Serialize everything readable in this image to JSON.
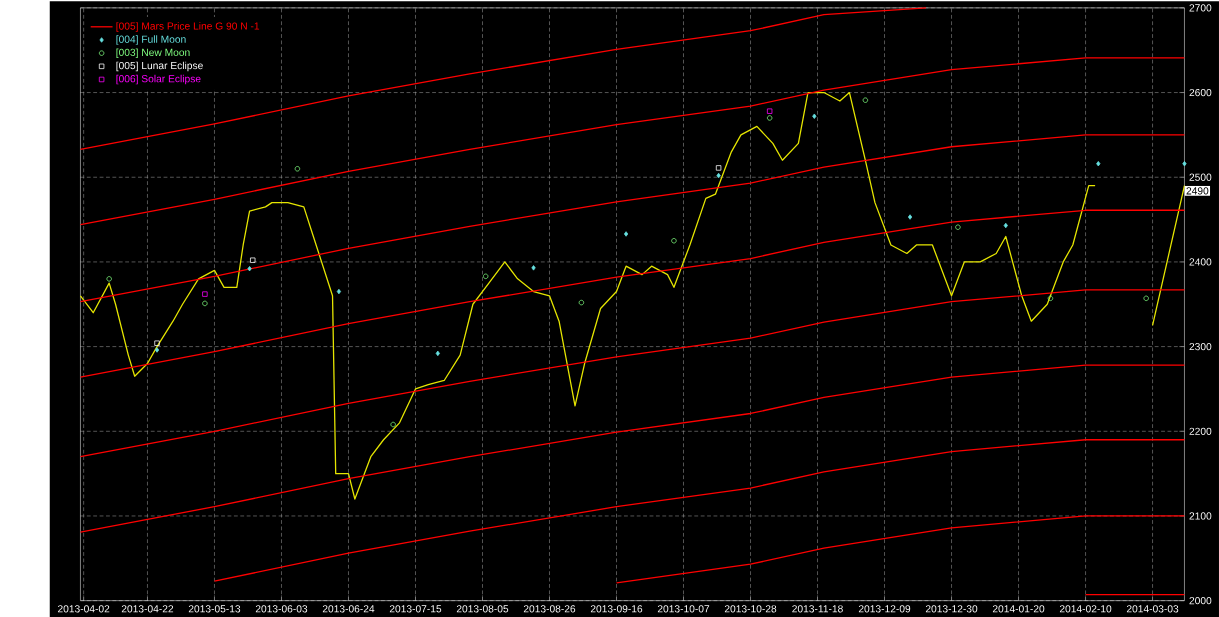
{
  "chart_data": {
    "type": "line",
    "xlim": [
      "2013-04-01",
      "2014-03-13"
    ],
    "ylim": [
      2000,
      2700
    ],
    "xticks": [
      "2013-04-02",
      "2013-04-22",
      "2013-05-13",
      "2013-06-03",
      "2013-06-24",
      "2013-07-15",
      "2013-08-05",
      "2013-08-26",
      "2013-09-16",
      "2013-10-07",
      "2013-10-28",
      "2013-11-18",
      "2013-12-09",
      "2013-12-30",
      "2014-01-20",
      "2014-02-10",
      "2014-03-03"
    ],
    "yticks": [
      2000,
      2100,
      2200,
      2300,
      2400,
      2500,
      2600,
      2700
    ],
    "grid": true,
    "legend": "top left",
    "annotations": [
      {
        "text": "2490",
        "x": "2014-03-13",
        "y": 2490
      }
    ],
    "series": [
      {
        "color": "#e6e600",
        "marker": "none",
        "x": [
          "2013-04-01",
          "2013-04-05",
          "2013-04-10",
          "2013-04-12",
          "2013-04-16",
          "2013-04-18",
          "2013-04-22",
          "2013-04-25",
          "2013-04-30",
          "2013-05-03",
          "2013-05-08",
          "2013-05-13",
          "2013-05-16",
          "2013-05-20",
          "2013-05-22",
          "2013-05-24",
          "2013-05-29",
          "2013-05-31",
          "2013-06-05",
          "2013-06-10",
          "2013-06-13",
          "2013-06-19",
          "2013-06-20",
          "2013-06-24",
          "2013-06-26",
          "2013-07-01",
          "2013-07-05",
          "2013-07-10",
          "2013-07-15",
          "2013-07-19",
          "2013-07-24",
          "2013-07-29",
          "2013-08-02",
          "2013-08-07",
          "2013-08-12",
          "2013-08-16",
          "2013-08-21",
          "2013-08-26",
          "2013-08-29",
          "2013-09-03",
          "2013-09-06",
          "2013-09-11",
          "2013-09-16",
          "2013-09-19",
          "2013-09-24",
          "2013-09-27",
          "2013-10-02",
          "2013-10-04",
          "2013-10-09",
          "2013-10-14",
          "2013-10-17",
          "2013-10-22",
          "2013-10-25",
          "2013-10-30",
          "2013-11-04",
          "2013-11-07",
          "2013-11-12",
          "2013-11-15",
          "2013-11-20",
          "2013-11-25",
          "2013-11-28",
          "2013-12-03",
          "2013-12-06",
          "2013-12-11",
          "2013-12-16",
          "2013-12-19",
          "2013-12-24",
          "2013-12-30",
          "2014-01-03",
          "2014-01-08",
          "2014-01-13",
          "2014-01-16",
          "2014-01-21",
          "2014-01-24",
          "2014-01-29",
          "2014-02-03",
          "2014-02-06",
          "2014-02-11",
          "2014-02-13",
          "2014-02-20",
          "2014-03-03",
          "2014-03-13"
        ],
        "values": [
          2360,
          2340,
          2375,
          2350,
          2290,
          2265,
          2280,
          2300,
          2330,
          2350,
          2380,
          2390,
          2370,
          2370,
          2420,
          2460,
          2465,
          2470,
          2470,
          2465,
          2430,
          2360,
          2150,
          2150,
          2120,
          2170,
          2190,
          2210,
          2250,
          2255,
          2260,
          2290,
          2350,
          2375,
          2400,
          2380,
          2365,
          2360,
          2330,
          2230,
          2280,
          2345,
          2365,
          2395,
          2385,
          2395,
          2385,
          2370,
          2420,
          2475,
          2480,
          2530,
          2550,
          2560,
          2540,
          2520,
          2540,
          2600,
          2600,
          2590,
          2600,
          2520,
          2470,
          2420,
          2410,
          2420,
          2420,
          2360,
          2400,
          2400,
          2410,
          2430,
          2360,
          2330,
          2350,
          2400,
          2420,
          2490,
          2490,
          null,
          2325,
          2490
        ]
      },
      {
        "type": "line",
        "name": "[005] Mars Price Line G 90 N -1",
        "color": "#ff0000",
        "marker": "none",
        "x": [
          "2013-04-01",
          "2013-05-13",
          "2013-06-24",
          "2013-08-01",
          "2013-09-16",
          "2013-10-28",
          "2013-11-20",
          "2013-12-22"
        ],
        "values": [
          2533,
          2563,
          2596,
          2622,
          2651,
          2673,
          2692,
          2700
        ]
      },
      {
        "type": "line",
        "color": "#ff0000",
        "marker": "none",
        "x": [
          "2013-04-01",
          "2013-05-13",
          "2013-06-24",
          "2013-08-01",
          "2013-09-16",
          "2013-10-28",
          "2013-11-20",
          "2013-12-30",
          "2014-02-10",
          "2014-03-13"
        ],
        "values": [
          2444,
          2474,
          2507,
          2533,
          2562,
          2584,
          2603,
          2627,
          2641,
          2641
        ]
      },
      {
        "type": "line",
        "color": "#ff0000",
        "marker": "none",
        "x": [
          "2013-04-01",
          "2013-05-13",
          "2013-06-24",
          "2013-08-01",
          "2013-09-16",
          "2013-10-28",
          "2013-11-20",
          "2013-12-30",
          "2014-02-10",
          "2014-03-13"
        ],
        "values": [
          2353,
          2383,
          2416,
          2442,
          2471,
          2493,
          2512,
          2536,
          2550,
          2550
        ]
      },
      {
        "type": "line",
        "color": "#ff0000",
        "marker": "none",
        "x": [
          "2013-04-01",
          "2013-05-13",
          "2013-06-24",
          "2013-08-01",
          "2013-09-16",
          "2013-10-28",
          "2013-11-20",
          "2013-12-30",
          "2014-02-10",
          "2014-03-13"
        ],
        "values": [
          2264,
          2294,
          2327,
          2353,
          2382,
          2404,
          2423,
          2447,
          2461,
          2461
        ]
      },
      {
        "type": "line",
        "color": "#ff0000",
        "marker": "none",
        "x": [
          "2013-04-01",
          "2013-05-13",
          "2013-06-24",
          "2013-08-01",
          "2013-09-16",
          "2013-10-28",
          "2013-11-20",
          "2013-12-30",
          "2014-02-10",
          "2014-03-13"
        ],
        "values": [
          2170,
          2200,
          2233,
          2259,
          2288,
          2310,
          2329,
          2353,
          2367,
          2367
        ]
      },
      {
        "type": "line",
        "color": "#ff0000",
        "marker": "none",
        "x": [
          "2013-04-01",
          "2013-05-13",
          "2013-06-24",
          "2013-08-01",
          "2013-09-16",
          "2013-10-28",
          "2013-11-20",
          "2013-12-30",
          "2014-02-10",
          "2014-03-13"
        ],
        "values": [
          2081,
          2111,
          2144,
          2170,
          2199,
          2221,
          2240,
          2264,
          2278,
          2278
        ]
      },
      {
        "type": "line",
        "color": "#ff0000",
        "marker": "none",
        "x": [
          "2013-05-13",
          "2013-06-24",
          "2013-08-01",
          "2013-09-16",
          "2013-10-28",
          "2013-11-20",
          "2013-12-30",
          "2014-02-10",
          "2014-03-13"
        ],
        "values": [
          2023,
          2056,
          2082,
          2111,
          2133,
          2152,
          2176,
          2190,
          2190
        ]
      },
      {
        "type": "line",
        "color": "#ff0000",
        "marker": "none",
        "x": [
          "2013-09-16",
          "2013-10-28",
          "2013-11-20",
          "2013-12-30",
          "2014-02-10",
          "2014-03-13"
        ],
        "values": [
          2021,
          2043,
          2062,
          2086,
          2100,
          2100
        ]
      },
      {
        "type": "line",
        "color": "#ff0000",
        "marker": "none",
        "x": [
          "2014-02-10",
          "2014-03-13"
        ],
        "values": [
          2007,
          2007
        ]
      },
      {
        "type": "scatter",
        "name": "[004] Full Moon",
        "color": "#66e0e0",
        "marker": "diamond",
        "x": [
          "2013-04-25",
          "2013-05-24",
          "2013-06-21",
          "2013-07-22",
          "2013-08-21",
          "2013-09-19",
          "2013-10-18",
          "2013-11-17",
          "2013-12-17",
          "2014-01-16",
          "2014-02-14",
          "2014-03-13"
        ],
        "values": [
          2296,
          2392,
          2365,
          2292,
          2393,
          2433,
          2502,
          2572,
          2453,
          2443,
          2516,
          2516
        ]
      },
      {
        "type": "scatter",
        "name": "[003] New Moon",
        "color": "#80ff80",
        "marker": "circle",
        "x": [
          "2013-04-10",
          "2013-05-10",
          "2013-06-08",
          "2013-07-08",
          "2013-08-06",
          "2013-09-05",
          "2013-10-04",
          "2013-11-03",
          "2013-12-03",
          "2014-01-01",
          "2014-01-30",
          "2014-03-01"
        ],
        "values": [
          2380,
          2351,
          2510,
          2208,
          2383,
          2352,
          2425,
          2570,
          2591,
          2441,
          2357,
          2357
        ]
      },
      {
        "type": "scatter",
        "name": "[005] Lunar Eclipse",
        "color": "#ffffff",
        "marker": "square",
        "x": [
          "2013-04-25",
          "2013-05-25",
          "2013-10-18"
        ],
        "values": [
          2304,
          2402,
          2511
        ]
      },
      {
        "type": "scatter",
        "name": "[006] Solar Eclipse",
        "color": "#ff00ff",
        "marker": "square",
        "x": [
          "2013-05-10",
          "2013-11-03"
        ],
        "values": [
          2362,
          2578
        ]
      }
    ]
  }
}
